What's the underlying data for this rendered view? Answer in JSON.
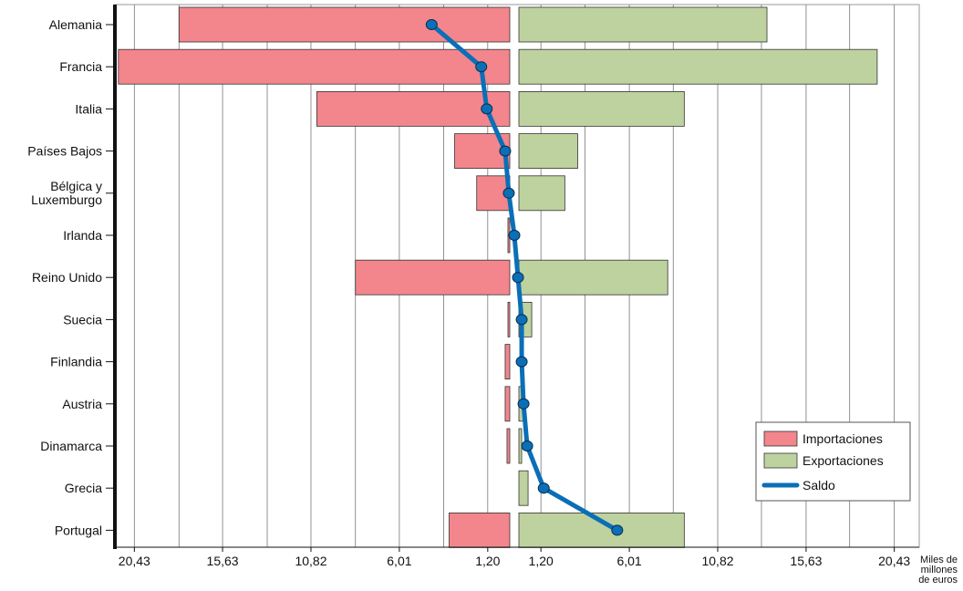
{
  "chart_data": {
    "type": "bar",
    "orientation": "horizontal",
    "subtype": "diverging",
    "categories": [
      "Alemania",
      "Francia",
      "Italia",
      "Países Bajos",
      "Bélgica y\nLuxemburgo",
      "Irlanda",
      "Reino Unido",
      "Suecia",
      "Finlandia",
      "Austria",
      "Dinamarca",
      "Grecia",
      "Portugal"
    ],
    "series": [
      {
        "name": "Importaciones",
        "type": "bar",
        "side": "left",
        "color": "#f2868c",
        "values": [
          18.0,
          21.3,
          10.5,
          3.0,
          1.8,
          0.1,
          8.4,
          0.1,
          0.25,
          0.25,
          0.15,
          0.0,
          3.3
        ]
      },
      {
        "name": "Exportaciones",
        "type": "bar",
        "side": "right",
        "color": "#bdd29f",
        "values": [
          13.5,
          19.5,
          9.0,
          3.2,
          2.5,
          0.0,
          8.1,
          0.7,
          0.0,
          0.3,
          0.15,
          0.5,
          9.0
        ]
      },
      {
        "name": "Saldo",
        "type": "line",
        "color": "#0a6fb7",
        "values": [
          -4.5,
          -1.8,
          -1.5,
          -0.5,
          -0.3,
          0.0,
          0.2,
          0.4,
          0.4,
          0.5,
          0.7,
          1.6,
          5.6
        ]
      }
    ],
    "x_ticks_left": [
      "20,43",
      "15,63",
      "10,82",
      "6,01",
      "1,20"
    ],
    "x_ticks_right": [
      "1,20",
      "6,01",
      "10,82",
      "15,63",
      "20,43"
    ],
    "xlabel": "Miles de\nmillones\nde euros",
    "xlim_each_side": [
      0,
      22
    ],
    "grid": "vertical",
    "legend_position": "bottom-right"
  }
}
